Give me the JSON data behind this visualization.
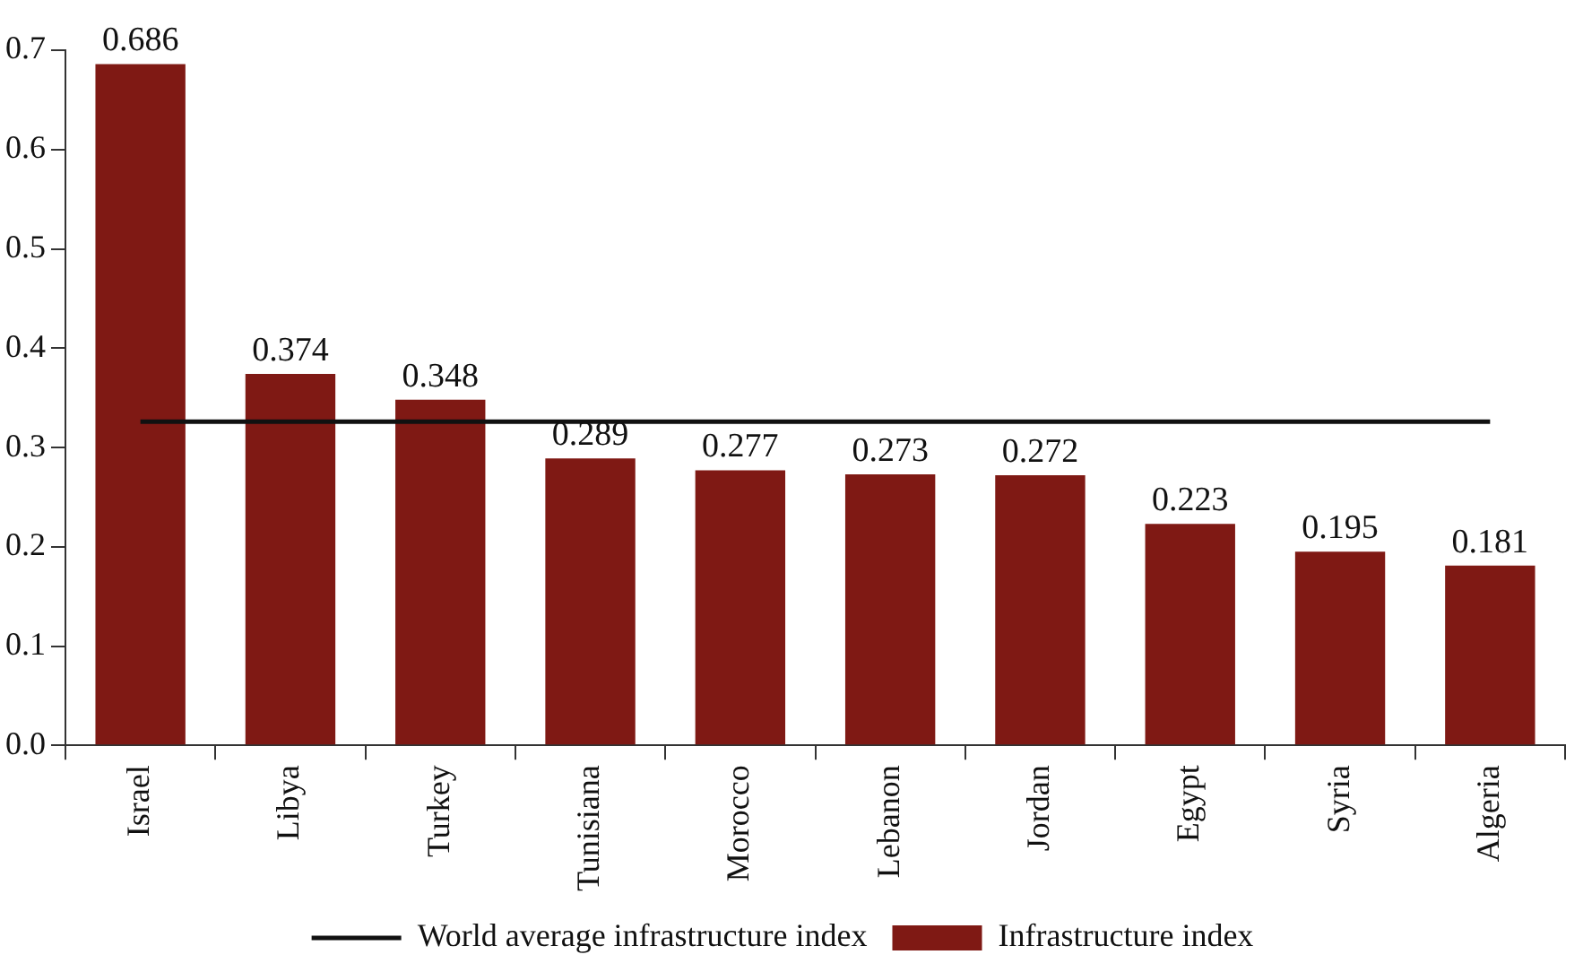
{
  "chart_data": {
    "type": "bar",
    "categories": [
      "Israel",
      "Libya",
      "Turkey",
      "Tunisiana",
      "Morocco",
      "Lebanon",
      "Jordan",
      "Egypt",
      "Syria",
      "Algeria"
    ],
    "series": [
      {
        "name": "Infrastructure index",
        "color": "#7f1914",
        "values": [
          0.686,
          0.374,
          0.348,
          0.289,
          0.277,
          0.273,
          0.272,
          0.223,
          0.195,
          0.181
        ],
        "value_labels": [
          "0.686",
          "0.374",
          "0.348",
          "0.289",
          "0.277",
          "0.273",
          "0.272",
          "0.223",
          "0.195",
          "0.181"
        ]
      },
      {
        "name": "World average infrastructure index",
        "type": "line",
        "color": "#111111",
        "marker": "none",
        "values": [
          0.326,
          0.326,
          0.326,
          0.326,
          0.326,
          0.326,
          0.326,
          0.326,
          0.326,
          0.326
        ]
      }
    ],
    "ylim": [
      0,
      0.7
    ],
    "yticks": [
      "0.0",
      "0.1",
      "0.2",
      "0.3",
      "0.4",
      "0.5",
      "0.6",
      "0.7"
    ],
    "legend": "bottom"
  }
}
